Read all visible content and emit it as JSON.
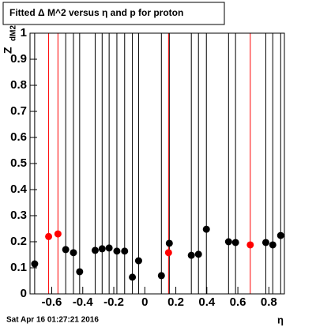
{
  "chart_data": {
    "type": "errorscatter",
    "title": "Fitted Δ M^2 versus η and p for proton",
    "y_label": "Z",
    "y_label_sub": "dM2",
    "x_label": "η",
    "footer": "Sat Apr 16 01:27:21 2016",
    "xlim": [
      -0.74,
      0.9
    ],
    "ylim": [
      0,
      1
    ],
    "xticks": [
      -0.6,
      -0.4,
      -0.2,
      0,
      0.2,
      0.4,
      0.6,
      0.8
    ],
    "yticks": [
      0,
      0.1,
      0.2,
      0.3,
      0.4,
      0.5,
      0.6,
      0.7,
      0.8,
      0.9,
      1
    ],
    "series": [
      {
        "color": "#000000",
        "x": [
          -0.71,
          -0.51,
          -0.46,
          -0.42,
          -0.32,
          -0.275,
          -0.23,
          -0.18,
          -0.13,
          -0.08,
          -0.04,
          0.107,
          0.158,
          0.3,
          0.346,
          0.397,
          0.54,
          0.585,
          0.78,
          0.825,
          0.876
        ],
        "values": [
          0.115,
          0.17,
          0.158,
          0.085,
          0.167,
          0.173,
          0.176,
          0.164,
          0.164,
          0.064,
          0.127,
          0.07,
          0.194,
          0.148,
          0.152,
          0.248,
          0.2,
          0.197,
          0.197,
          0.188,
          0.224
        ],
        "errors": [
          1,
          1,
          1,
          1,
          1,
          1,
          1,
          1,
          1,
          1,
          1,
          1,
          1,
          1,
          1,
          1,
          1,
          1,
          1,
          1,
          1
        ]
      },
      {
        "color": "#ff0000",
        "x": [
          -0.62,
          -0.56,
          0.153,
          0.68
        ],
        "values": [
          0.22,
          0.23,
          0.158,
          0.188
        ],
        "errors": [
          1,
          1,
          1,
          1
        ]
      }
    ]
  }
}
